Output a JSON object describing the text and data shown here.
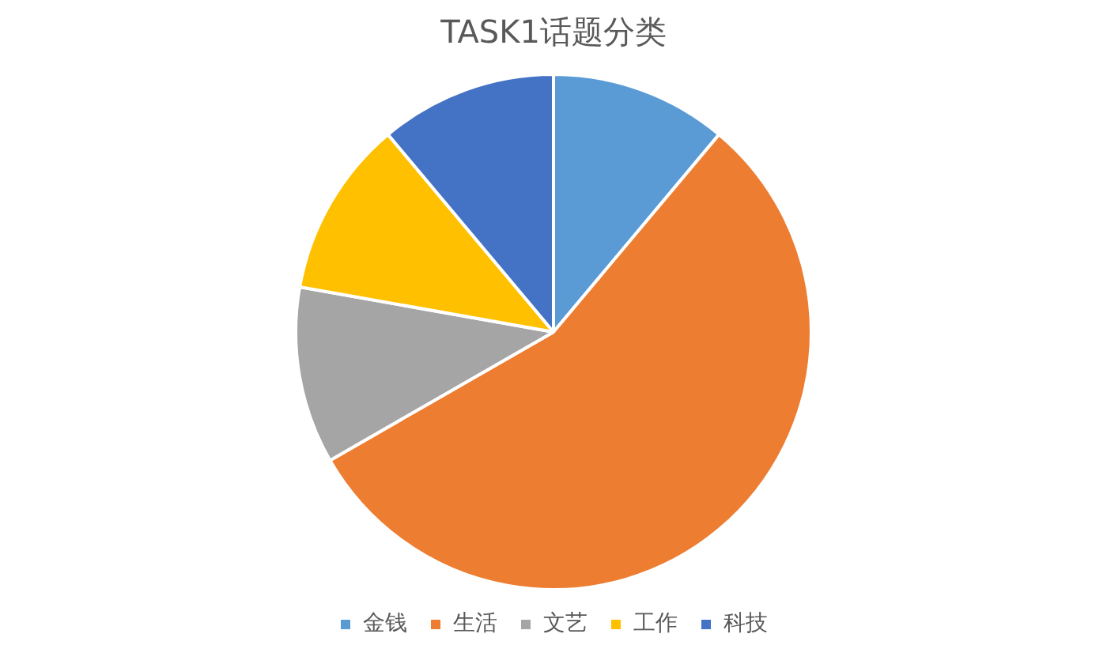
{
  "chart_data": {
    "type": "pie",
    "title": "TASK1话题分类",
    "categories": [
      "金钱",
      "生活",
      "文艺",
      "工作",
      "科技"
    ],
    "values": [
      11.1,
      55.6,
      11.1,
      11.1,
      11.1
    ],
    "colors": [
      "#5b9bd5",
      "#ed7d31",
      "#a5a5a5",
      "#ffc000",
      "#4472c4"
    ],
    "legend": "bottom"
  }
}
